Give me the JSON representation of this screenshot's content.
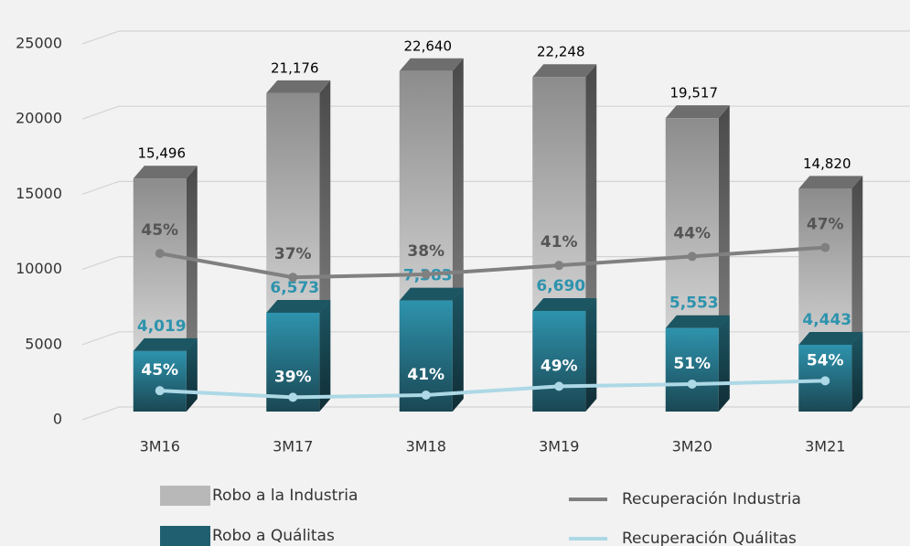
{
  "chart_data": {
    "type": "bar",
    "categories": [
      "3M16",
      "3M17",
      "3M18",
      "3M19",
      "3M20",
      "3M21"
    ],
    "ylim": [
      0,
      25000
    ],
    "yticks": [
      0,
      5000,
      10000,
      15000,
      20000,
      25000
    ],
    "grid": true,
    "legend": "bottom",
    "series": [
      {
        "name": "Robo a la Industria",
        "type": "bar",
        "color": "#b8b8b8",
        "values": [
          15496,
          21176,
          22640,
          22248,
          19517,
          14820
        ],
        "value_labels": [
          "15,496",
          "21,176",
          "22,640",
          "22,248",
          "19,517",
          "14,820"
        ]
      },
      {
        "name": "Robo a Quálitas",
        "type": "bar",
        "color": "#1f5f70",
        "values": [
          4019,
          6573,
          7383,
          6690,
          5553,
          4443
        ],
        "value_labels": [
          "4,019",
          "6,573",
          "7,383",
          "6,690",
          "5,553",
          "4,443"
        ]
      },
      {
        "name": "Recuperación Industria",
        "type": "line",
        "color": "#808080",
        "ylim": [
          -8,
          118
        ],
        "values": [
          45,
          37,
          38,
          41,
          44,
          47
        ],
        "value_labels": [
          "45%",
          "37%",
          "38%",
          "41%",
          "44%",
          "47%"
        ]
      },
      {
        "name": "Recuperación Quálitas",
        "type": "line",
        "color": "#add8e6",
        "ylim": [
          26,
          368
        ],
        "values": [
          45,
          39,
          41,
          49,
          51,
          54
        ],
        "value_labels": [
          "45%",
          "39%",
          "41%",
          "49%",
          "51%",
          "54%"
        ]
      }
    ]
  }
}
